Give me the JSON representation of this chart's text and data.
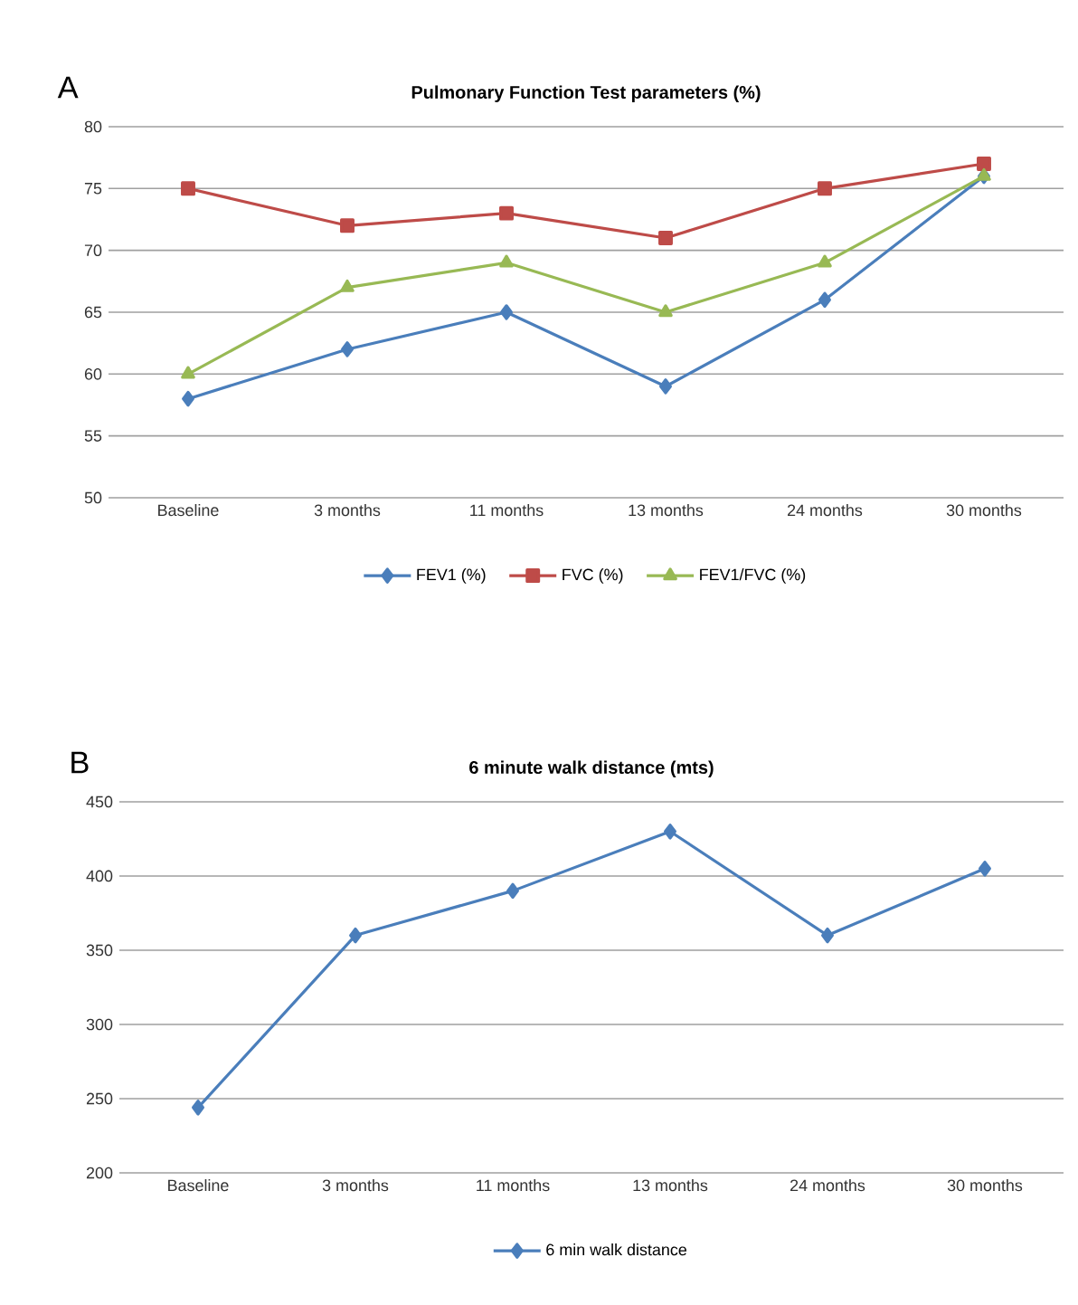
{
  "chart_data": [
    {
      "type": "line",
      "title": "Pulmonary Function Test parameters (%)",
      "annotations": [
        "A"
      ],
      "categories": [
        "Baseline",
        "3   months",
        "11 months",
        "13 months",
        "24 months",
        "30 months"
      ],
      "series": [
        {
          "name": "FEV1 (%)",
          "color": "#4a7ebb",
          "marker": "diamond",
          "values": [
            58,
            62,
            65,
            59,
            66,
            76
          ]
        },
        {
          "name": "FVC (%)",
          "color": "#be4b48",
          "marker": "square",
          "values": [
            75,
            72,
            73,
            71,
            75,
            77
          ]
        },
        {
          "name": "FEV1/FVC (%)",
          "color": "#98b954",
          "marker": "triangle",
          "values": [
            60,
            67,
            69,
            65,
            69,
            76
          ]
        }
      ],
      "ylim": [
        50,
        80
      ],
      "yticks": [
        50,
        55,
        60,
        65,
        70,
        75,
        80
      ],
      "grid": "y",
      "legend": "bottom",
      "line_style": "solid"
    },
    {
      "type": "line",
      "title": "6 minute walk distance (mts)",
      "annotations": [
        "B"
      ],
      "categories": [
        "Baseline",
        "3 months",
        "11 months",
        "13 months",
        "24 months",
        "30 months"
      ],
      "series": [
        {
          "name": "6 min walk distance",
          "color": "#4a7ebb",
          "marker": "diamond",
          "values": [
            244,
            360,
            390,
            430,
            360,
            405
          ]
        }
      ],
      "ylim": [
        200,
        450
      ],
      "yticks": [
        200,
        250,
        300,
        350,
        400,
        450
      ],
      "grid": "y",
      "legend": "bottom",
      "line_style": "solid"
    }
  ]
}
